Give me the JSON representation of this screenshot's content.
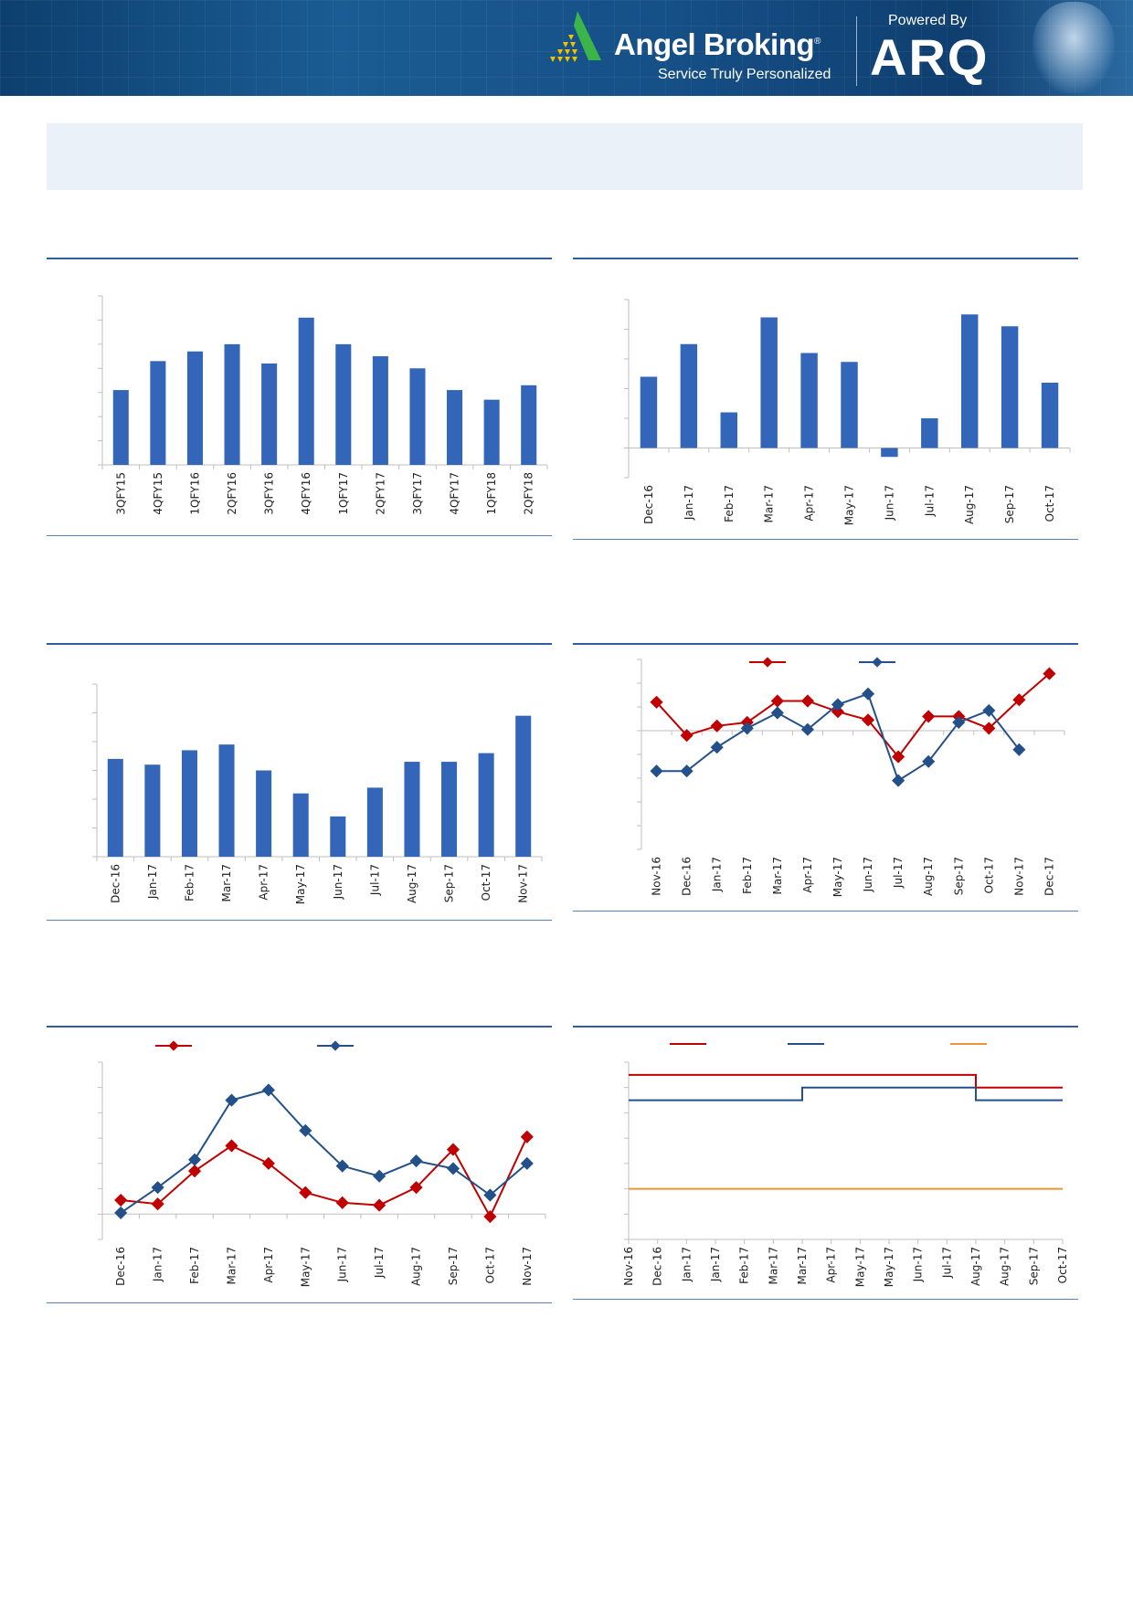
{
  "header": {
    "brand": "Angel Broking",
    "registered": "®",
    "tagline": "Service Truly Personalized",
    "powered_by": "Powered By",
    "partner": "ARQ"
  },
  "colors": {
    "bar": "#3366b8",
    "red": "#c00000",
    "blue": "#24508a",
    "orange": "#e8963c",
    "rule": "#2e5f9a"
  },
  "chart_data": [
    {
      "type": "bar",
      "categories": [
        "3QFY15",
        "4QFY15",
        "1QFY16",
        "2QFY16",
        "3QFY16",
        "4QFY16",
        "1QFY17",
        "2QFY17",
        "3QFY17",
        "4QFY17",
        "1QFY18",
        "2QFY18"
      ],
      "values": [
        3.1,
        4.3,
        4.7,
        5.0,
        4.2,
        6.1,
        5.0,
        4.5,
        4.0,
        3.1,
        2.7,
        3.3
      ],
      "ylim": [
        0,
        7
      ],
      "grid": false,
      "title": "",
      "xlabel": "",
      "ylabel": ""
    },
    {
      "type": "bar",
      "categories": [
        "Dec-16",
        "Jan-17",
        "Feb-17",
        "Mar-17",
        "Apr-17",
        "May-17",
        "Jun-17",
        "Jul-17",
        "Aug-17",
        "Sep-17",
        "Oct-17"
      ],
      "values": [
        2.4,
        3.5,
        1.2,
        4.4,
        3.2,
        2.9,
        -0.3,
        1.0,
        4.5,
        4.1,
        2.2
      ],
      "ylim": [
        -1,
        5
      ],
      "grid": false,
      "title": "",
      "xlabel": "",
      "ylabel": ""
    },
    {
      "type": "bar",
      "categories": [
        "Dec-16",
        "Jan-17",
        "Feb-17",
        "Mar-17",
        "Apr-17",
        "May-17",
        "Jun-17",
        "Jul-17",
        "Aug-17",
        "Sep-17",
        "Oct-17",
        "Nov-17"
      ],
      "values": [
        3.4,
        3.2,
        3.7,
        3.9,
        3.0,
        2.2,
        1.4,
        2.4,
        3.3,
        3.3,
        3.6,
        4.9
      ],
      "ylim": [
        0,
        6
      ],
      "grid": false,
      "title": "",
      "xlabel": "",
      "ylabel": ""
    },
    {
      "type": "line",
      "categories": [
        "Nov-16",
        "Dec-16",
        "Jan-17",
        "Feb-17",
        "Mar-17",
        "Apr-17",
        "May-17",
        "Jun-17",
        "Jul-17",
        "Aug-17",
        "Sep-17",
        "Oct-17",
        "Nov-17",
        "Dec-17"
      ],
      "series": [
        {
          "color": "#c00000",
          "values": [
            1.2,
            -0.2,
            0.2,
            0.35,
            1.25,
            1.25,
            0.8,
            0.45,
            -1.1,
            0.6,
            0.6,
            0.1,
            1.3,
            2.4
          ]
        },
        {
          "color": "#24508a",
          "values": [
            -1.7,
            -1.7,
            -0.7,
            0.1,
            0.75,
            0.05,
            1.1,
            1.55,
            -2.1,
            -1.3,
            0.35,
            0.85,
            -0.8,
            null
          ]
        }
      ],
      "ylim": [
        -5,
        3
      ],
      "legend": "top-center",
      "grid": false
    },
    {
      "type": "line",
      "categories": [
        "Dec-16",
        "Jan-17",
        "Feb-17",
        "Mar-17",
        "Apr-17",
        "May-17",
        "Jun-17",
        "Jul-17",
        "Aug-17",
        "Sep-17",
        "Oct-17",
        "Nov-17"
      ],
      "series": [
        {
          "color": "#c00000",
          "values": [
            0.55,
            0.4,
            1.7,
            2.7,
            2.0,
            0.85,
            0.45,
            0.35,
            1.05,
            2.55,
            -0.1,
            3.05
          ]
        },
        {
          "color": "#24508a",
          "values": [
            0.05,
            1.05,
            2.15,
            4.5,
            4.9,
            3.3,
            1.9,
            1.5,
            2.1,
            1.8,
            0.75,
            2.0
          ]
        }
      ],
      "ylim": [
        -1,
        6
      ],
      "legend": "top-left",
      "grid": false
    },
    {
      "type": "line",
      "step": true,
      "categories": [
        "Nov-16",
        "Dec-16",
        "Jan-17",
        "Jan-17",
        "Feb-17",
        "Mar-17",
        "Mar-17",
        "Apr-17",
        "May-17",
        "May-17",
        "Jun-17",
        "Jul-17",
        "Aug-17",
        "Aug-17",
        "Sep-17",
        "Oct-17"
      ],
      "series": [
        {
          "color": "#c00000",
          "values": [
            6.5,
            6.5,
            6.5,
            6.5,
            6.5,
            6.5,
            6.5,
            6.5,
            6.5,
            6.5,
            6.5,
            6.5,
            6.0,
            6.0,
            6.0,
            6.0
          ]
        },
        {
          "color": "#24508a",
          "values": [
            5.5,
            5.5,
            5.5,
            5.5,
            5.5,
            5.5,
            6.0,
            6.0,
            6.0,
            6.0,
            6.0,
            6.0,
            5.5,
            5.5,
            5.5,
            5.5
          ]
        },
        {
          "color": "#e8963c",
          "values": [
            2.0,
            2.0,
            2.0,
            2.0,
            2.0,
            2.0,
            2.0,
            2.0,
            2.0,
            2.0,
            2.0,
            2.0,
            2.0,
            2.0,
            2.0,
            2.0
          ]
        }
      ],
      "ylim": [
        0,
        7
      ],
      "legend": "top",
      "grid": false
    }
  ]
}
